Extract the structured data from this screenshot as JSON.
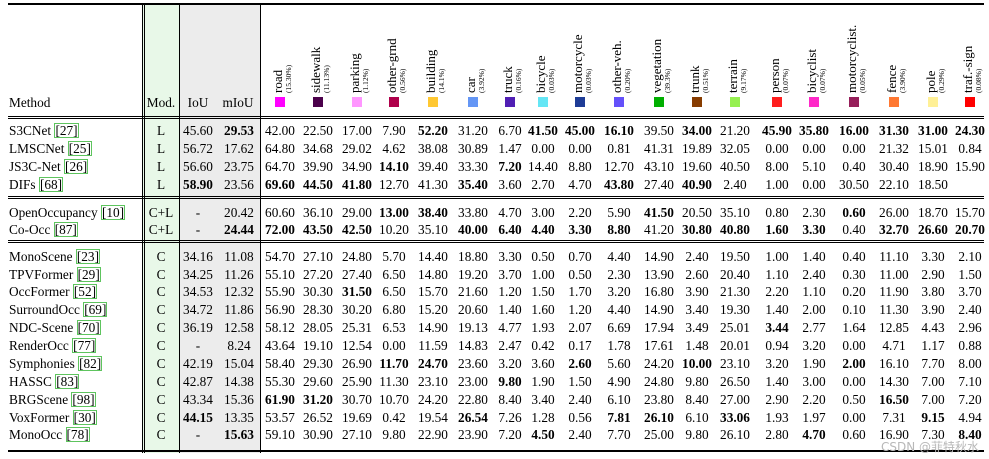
{
  "headers": {
    "method": "Method",
    "mod": "Mod.",
    "iou": "IoU",
    "miou": "mIoU"
  },
  "classes": [
    {
      "name": "road",
      "pct": "(15.30%)",
      "color": "#ff00ff"
    },
    {
      "name": "sidewalk",
      "pct": "(11.13%)",
      "color": "#4b004b"
    },
    {
      "name": "parking",
      "pct": "(1.12%)",
      "color": "#ff96ff"
    },
    {
      "name": "other-grnd",
      "pct": "(0.56%)",
      "color": "#af004b"
    },
    {
      "name": "building",
      "pct": "(14.1%)",
      "color": "#ffc832"
    },
    {
      "name": "car",
      "pct": "(3.92%)",
      "color": "#6496f5"
    },
    {
      "name": "truck",
      "pct": "(0.16%)",
      "color": "#501eb4"
    },
    {
      "name": "bicycle",
      "pct": "(0.03%)",
      "color": "#64e6f5"
    },
    {
      "name": "motorcycle",
      "pct": "(0.03%)",
      "color": "#1e3c96"
    },
    {
      "name": "other-veh.",
      "pct": "(0.20%)",
      "color": "#6450fa"
    },
    {
      "name": "vegetation",
      "pct": "(39.3%)",
      "color": "#00af00"
    },
    {
      "name": "trunk",
      "pct": "(0.51%)",
      "color": "#873c00"
    },
    {
      "name": "terrain",
      "pct": "(9.17%)",
      "color": "#96f050"
    },
    {
      "name": "person",
      "pct": "(0.07%)",
      "color": "#ff1e1e"
    },
    {
      "name": "bicyclist",
      "pct": "(0.07%)",
      "color": "#ff28c8"
    },
    {
      "name": "motorcyclist.",
      "pct": "(0.05%)",
      "color": "#961e5a"
    },
    {
      "name": "fence",
      "pct": "(3.90%)",
      "color": "#ff7832"
    },
    {
      "name": "pole",
      "pct": "(0.29%)",
      "color": "#fff096"
    },
    {
      "name": "traf.-sign",
      "pct": "(0.08%)",
      "color": "#ff0000"
    }
  ],
  "groups": [
    {
      "rows": [
        {
          "name": "S3CNet",
          "cite": "27",
          "mod": "L",
          "iou": "45.60",
          "miou": "29.53",
          "vals": [
            "42.00",
            "22.50",
            "17.00",
            "7.90",
            "52.20",
            "31.20",
            "6.70",
            "41.50",
            "45.00",
            "16.10",
            "39.50",
            "34.00",
            "21.20",
            "45.90",
            "35.80",
            "16.00",
            "31.30",
            "31.00",
            "24.30"
          ],
          "bold": [
            "miou",
            "4",
            "7",
            "8",
            "9",
            "11",
            "13",
            "14",
            "15",
            "16",
            "17",
            "18"
          ]
        },
        {
          "name": "LMSCNet",
          "cite": "25",
          "mod": "L",
          "iou": "56.72",
          "miou": "17.62",
          "vals": [
            "64.80",
            "34.68",
            "29.02",
            "4.62",
            "38.08",
            "30.89",
            "1.47",
            "0.00",
            "0.00",
            "0.81",
            "41.31",
            "19.89",
            "32.05",
            "0.00",
            "0.00",
            "0.00",
            "21.32",
            "15.01",
            "0.84"
          ],
          "bold": []
        },
        {
          "name": "JS3C-Net",
          "cite": "26",
          "mod": "L",
          "iou": "56.60",
          "miou": "23.75",
          "vals": [
            "64.70",
            "39.90",
            "34.90",
            "14.10",
            "39.40",
            "33.30",
            "7.20",
            "14.40",
            "8.80",
            "12.70",
            "43.10",
            "19.60",
            "40.50",
            "8.00",
            "5.10",
            "0.40",
            "30.40",
            "18.90",
            "15.90"
          ],
          "bold": [
            "3",
            "6"
          ]
        },
        {
          "name": "DIFs",
          "cite": "68",
          "mod": "L",
          "iou": "58.90",
          "miou": "23.56",
          "vals": [
            "69.60",
            "44.50",
            "41.80",
            "12.70",
            "41.30",
            "35.40",
            "3.60",
            "2.70",
            "4.70",
            "43.80",
            "27.40",
            "40.90",
            "2.40",
            "1.00",
            "0.00",
            "30.50",
            "22.10",
            "18.50",
            ""
          ],
          "bold": [
            "iou",
            "0",
            "1",
            "2",
            "5",
            "9",
            "11"
          ]
        }
      ]
    },
    {
      "rows": [
        {
          "name": "OpenOccupancy",
          "cite": "10",
          "mod": "C+L",
          "iou": "-",
          "miou": "20.42",
          "vals": [
            "60.60",
            "36.10",
            "29.00",
            "13.00",
            "38.40",
            "33.80",
            "4.70",
            "3.00",
            "2.20",
            "5.90",
            "41.50",
            "20.50",
            "35.10",
            "0.80",
            "2.30",
            "0.60",
            "26.00",
            "18.70",
            "15.70"
          ],
          "bold": [
            "3",
            "4",
            "10",
            "15"
          ]
        },
        {
          "name": "Co-Occ",
          "cite": "87",
          "mod": "C+L",
          "iou": "-",
          "miou": "24.44",
          "vals": [
            "72.00",
            "43.50",
            "42.50",
            "10.20",
            "35.10",
            "40.00",
            "6.40",
            "4.40",
            "3.30",
            "8.80",
            "41.20",
            "30.80",
            "40.80",
            "1.60",
            "3.30",
            "0.40",
            "32.70",
            "26.60",
            "20.70"
          ],
          "bold": [
            "miou",
            "0",
            "1",
            "2",
            "5",
            "6",
            "7",
            "8",
            "9",
            "11",
            "12",
            "13",
            "14",
            "16",
            "17",
            "18"
          ]
        }
      ]
    },
    {
      "rows": [
        {
          "name": "MonoScene",
          "cite": "23",
          "mod": "C",
          "iou": "34.16",
          "miou": "11.08",
          "vals": [
            "54.70",
            "27.10",
            "24.80",
            "5.70",
            "14.40",
            "18.80",
            "3.30",
            "0.50",
            "0.70",
            "4.40",
            "14.90",
            "2.40",
            "19.50",
            "1.00",
            "1.40",
            "0.40",
            "11.10",
            "3.30",
            "2.10"
          ],
          "bold": []
        },
        {
          "name": "TPVFormer",
          "cite": "29",
          "mod": "C",
          "iou": "34.25",
          "miou": "11.26",
          "vals": [
            "55.10",
            "27.20",
            "27.40",
            "6.50",
            "14.80",
            "19.20",
            "3.70",
            "1.00",
            "0.50",
            "2.30",
            "13.90",
            "2.60",
            "20.40",
            "1.10",
            "2.40",
            "0.30",
            "11.00",
            "2.90",
            "1.50"
          ],
          "bold": []
        },
        {
          "name": "OccFormer",
          "cite": "52",
          "mod": "C",
          "iou": "34.53",
          "miou": "12.32",
          "vals": [
            "55.90",
            "30.30",
            "31.50",
            "6.50",
            "15.70",
            "21.60",
            "1.20",
            "1.50",
            "1.70",
            "3.20",
            "16.80",
            "3.90",
            "21.30",
            "2.20",
            "1.10",
            "0.20",
            "11.90",
            "3.80",
            "3.70"
          ],
          "bold": [
            "2"
          ]
        },
        {
          "name": "SurroundOcc",
          "cite": "69",
          "mod": "C",
          "iou": "34.72",
          "miou": "11.86",
          "vals": [
            "56.90",
            "28.30",
            "30.20",
            "6.80",
            "15.20",
            "20.60",
            "1.40",
            "1.60",
            "1.20",
            "4.40",
            "14.90",
            "3.40",
            "19.30",
            "1.40",
            "2.00",
            "0.10",
            "11.30",
            "3.90",
            "2.40"
          ],
          "bold": []
        },
        {
          "name": "NDC-Scene",
          "cite": "70",
          "mod": "C",
          "iou": "36.19",
          "miou": "12.58",
          "vals": [
            "58.12",
            "28.05",
            "25.31",
            "6.53",
            "14.90",
            "19.13",
            "4.77",
            "1.93",
            "2.07",
            "6.69",
            "17.94",
            "3.49",
            "25.01",
            "3.44",
            "2.77",
            "1.64",
            "12.85",
            "4.43",
            "2.96"
          ],
          "bold": [
            "13"
          ]
        },
        {
          "name": "RenderOcc",
          "cite": "77",
          "mod": "C",
          "iou": "-",
          "miou": "8.24",
          "vals": [
            "43.64",
            "19.10",
            "12.54",
            "0.00",
            "11.59",
            "14.83",
            "2.47",
            "0.42",
            "0.17",
            "1.78",
            "17.61",
            "1.48",
            "20.01",
            "0.94",
            "3.20",
            "0.00",
            "4.71",
            "1.17",
            "0.88"
          ],
          "bold": []
        },
        {
          "name": "Symphonies",
          "cite": "82",
          "mod": "C",
          "iou": "42.19",
          "miou": "15.04",
          "vals": [
            "58.40",
            "29.30",
            "26.90",
            "11.70",
            "24.70",
            "23.60",
            "3.20",
            "3.60",
            "2.60",
            "5.60",
            "24.20",
            "10.00",
            "23.10",
            "3.20",
            "1.90",
            "2.00",
            "16.10",
            "7.70",
            "8.00"
          ],
          "bold": [
            "3",
            "4",
            "8",
            "11",
            "15"
          ]
        },
        {
          "name": "HASSC",
          "cite": "83",
          "mod": "C",
          "iou": "42.87",
          "miou": "14.38",
          "vals": [
            "55.30",
            "29.60",
            "25.90",
            "11.30",
            "23.10",
            "23.00",
            "9.80",
            "1.90",
            "1.50",
            "4.90",
            "24.80",
            "9.80",
            "26.50",
            "1.40",
            "3.00",
            "0.00",
            "14.30",
            "7.00",
            "7.10"
          ],
          "bold": [
            "6"
          ]
        },
        {
          "name": "BRGScene",
          "cite": "98",
          "mod": "C",
          "iou": "43.34",
          "miou": "15.36",
          "vals": [
            "61.90",
            "31.20",
            "30.70",
            "10.70",
            "24.20",
            "22.80",
            "8.40",
            "3.40",
            "2.40",
            "6.10",
            "23.80",
            "8.40",
            "27.00",
            "2.90",
            "2.20",
            "0.50",
            "16.50",
            "7.00",
            "7.20"
          ],
          "bold": [
            "0",
            "1",
            "16"
          ]
        },
        {
          "name": "VoxFormer",
          "cite": "30",
          "mod": "C",
          "iou": "44.15",
          "miou": "13.35",
          "vals": [
            "53.57",
            "26.52",
            "19.69",
            "0.42",
            "19.54",
            "26.54",
            "7.26",
            "1.28",
            "0.56",
            "7.81",
            "26.10",
            "6.10",
            "33.06",
            "1.93",
            "1.97",
            "0.00",
            "7.31",
            "9.15",
            "4.94"
          ],
          "bold": [
            "iou",
            "5",
            "9",
            "10",
            "12",
            "17"
          ]
        },
        {
          "name": "MonoOcc",
          "cite": "78",
          "mod": "C",
          "iou": "-",
          "miou": "15.63",
          "vals": [
            "59.10",
            "30.90",
            "27.10",
            "9.80",
            "22.90",
            "23.90",
            "7.20",
            "4.50",
            "2.40",
            "7.70",
            "25.00",
            "9.80",
            "26.10",
            "2.80",
            "4.70",
            "0.60",
            "16.90",
            "7.30",
            "8.40"
          ],
          "bold": [
            "miou",
            "7",
            "14",
            "18"
          ]
        }
      ]
    }
  ],
  "watermark": "CSDN @菲特秋水"
}
